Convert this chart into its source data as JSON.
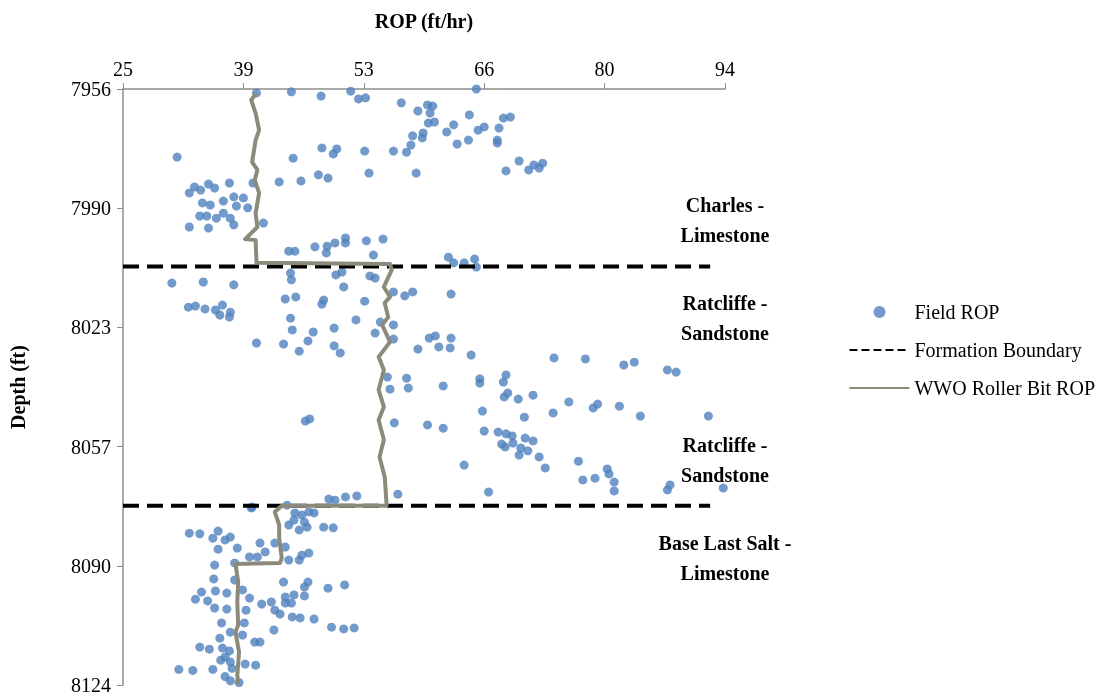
{
  "chart_data": {
    "type": "scatter",
    "xlabel": "ROP (ft/hr)",
    "ylabel": "Depth (ft)",
    "xlim": [
      25,
      94
    ],
    "xticks": [
      25,
      {
        "value": 38.8,
        "label": "39"
      },
      {
        "value": 52.6,
        "label": "53"
      },
      {
        "value": 66.4,
        "label": "66"
      },
      {
        "value": 80.2,
        "label": "80"
      },
      94
    ],
    "ylim": [
      8124,
      7956
    ],
    "yticks": [
      7956,
      {
        "value": 7989.6,
        "label": "7990"
      },
      {
        "value": 8023.2,
        "label": "8023"
      },
      {
        "value": 8056.8,
        "label": "8057"
      },
      {
        "value": 8090.4,
        "label": "8090"
      },
      8124
    ],
    "grid": false,
    "legend": "right",
    "annotations": [
      "Charles -\nLimestone",
      "Ratcliffe -\nSandstone",
      "Ratcliffe -\nSandstone",
      "Base Last Salt -\nLimestone"
    ],
    "series": [
      {
        "name": "Field ROP",
        "marker": "circle",
        "color": "#4f81bd",
        "x": [
          40.3,
          44.3,
          47.7,
          51.1,
          52.0,
          52.8,
          56.9,
          58.8,
          59.9,
          60.5,
          60.2,
          64.7,
          60.0,
          60.7,
          62.9,
          62.1,
          65.7,
          66.4,
          59.4,
          59.3,
          58.2,
          58.0,
          63.3,
          64.6,
          57.5,
          56.0,
          52.7,
          49.5,
          49.1,
          47.8,
          44.5,
          31.2,
          58.6,
          53.2,
          48.5,
          47.4,
          45.4,
          42.9,
          39.9,
          37.2,
          33.2,
          34.8,
          35.5,
          32.6,
          33.9,
          34.1,
          35.0,
          36.5,
          37.7,
          38.8,
          39.3,
          38.0,
          33.8,
          34.6,
          35.7,
          36.5,
          37.3,
          37.7,
          32.6,
          34.8,
          41.1,
          44.0,
          44.7,
          47.0,
          48.4,
          48.3,
          49.3,
          50.5,
          50.5,
          52.9,
          54.8,
          53.7,
          62.3,
          62.9,
          64.1,
          65.3,
          65.5,
          68.1,
          68.6,
          69.4,
          67.9,
          67.9,
          70.4,
          68.9,
          71.5,
          72.1,
          73.1,
          72.7,
          65.5,
          30.6,
          34.2,
          37.7,
          32.5,
          33.3,
          34.4,
          35.6,
          36.4,
          36.1,
          37.2,
          37.3,
          44.2,
          44.3,
          43.6,
          44.8,
          48.0,
          47.8,
          49.4,
          50.1,
          50.3,
          53.3,
          53.9,
          52.7,
          56.0,
          57.3,
          58.2,
          62.6,
          44.2,
          44.4,
          46.8,
          49.2,
          51.7,
          53.9,
          54.5,
          56.0,
          56.0,
          40.3,
          43.4,
          45.2,
          46.2,
          49.2,
          49.9,
          58.8,
          60.1,
          60.8,
          61.2,
          62.6,
          62.5,
          64.9,
          55.3,
          57.5,
          57.7,
          55.6,
          61.7,
          65.9,
          65.9,
          45.9,
          46.4,
          56.1,
          59.9,
          61.7,
          66.2,
          66.4,
          64.1,
          66.9,
          56.5,
          48.6,
          49.3,
          50.5,
          51.8,
          39.8,
          43.8,
          74.4,
          78.0,
          82.4,
          83.6,
          87.4,
          88.4,
          68.6,
          68.9,
          68.7,
          69.1,
          70.3,
          72.0,
          76.1,
          78.9,
          79.4,
          81.9,
          84.3,
          92.1,
          71.0,
          74.3,
          68.0,
          68.9,
          69.6,
          71.1,
          72.0,
          68.4,
          68.8,
          69.7,
          70.6,
          71.4,
          70.4,
          72.7,
          73.4,
          77.2,
          80.5,
          80.7,
          77.7,
          79.1,
          81.3,
          81.3,
          87.4,
          87.7,
          93.8,
          39.7,
          44.7,
          45.5,
          46.3,
          46.9,
          44.6,
          45.8,
          46.1,
          44.0,
          45.2,
          48.0,
          49.1,
          32.6,
          33.8,
          35.9,
          35.3,
          36.7,
          37.3,
          38.1,
          35.9,
          40.7,
          41.3,
          42.4,
          43.6,
          39.5,
          40.4,
          44.0,
          45.2,
          45.5,
          46.3,
          35.5,
          37.8,
          35.4,
          37.8,
          43.4,
          46.2,
          45.8,
          48.5,
          50.4,
          34.0,
          35.6,
          36.9,
          33.3,
          34.7,
          38.7,
          39.5,
          43.6,
          44.6,
          45.8,
          43.6,
          44.3,
          35.5,
          36.9,
          39.1,
          40.9,
          42.0,
          42.4,
          43.0,
          44.4,
          45.3,
          46.9,
          36.3,
          38.9,
          48.9,
          50.3,
          51.5,
          42.3,
          37.3,
          38.7,
          36.1,
          40.1,
          40.7,
          33.8,
          34.9,
          36.4,
          37.2,
          36.7,
          37.3,
          36.2,
          39.0,
          40.2,
          31.4,
          33.0,
          35.3,
          37.5,
          36.7,
          37.3,
          38.3
        ],
        "values": [
          7957.1,
          7956.8,
          7958.0,
          7956.6,
          7958.8,
          7958.5,
          7959.9,
          7962.2,
          7960.5,
          7960.8,
          7962.8,
          7963.3,
          7965.6,
          7965.3,
          7966.1,
          7968.1,
          7967.6,
          7966.7,
          7968.4,
          7969.8,
          7969.2,
          7971.8,
          7971.5,
          7970.4,
          7973.8,
          7973.5,
          7973.5,
          7972.9,
          7974.3,
          7972.6,
          7975.5,
          7975.2,
          7979.7,
          7979.7,
          7981.1,
          7980.2,
          7981.9,
          7982.2,
          7982.5,
          7982.5,
          7983.6,
          7982.8,
          7983.9,
          7985.3,
          7984.5,
          7988.1,
          7988.7,
          7987.6,
          7986.4,
          7986.7,
          7989.5,
          7989.0,
          7991.8,
          7991.8,
          7992.4,
          7991.0,
          7992.4,
          7994.3,
          7994.9,
          7995.2,
          7993.8,
          8001.7,
          8001.7,
          8000.5,
          8000.3,
          8002.2,
          7999.4,
          7998.0,
          7999.4,
          7998.8,
          7998.3,
          8002.8,
          8003.4,
          8005.0,
          8005.0,
          8003.9,
          7956.0,
          7967.0,
          7964.2,
          7963.9,
          7970.4,
          7971.2,
          7976.3,
          7979.1,
          7978.8,
          7977.4,
          7976.9,
          7978.3,
          8006.2,
          8010.7,
          8010.4,
          8011.2,
          8017.5,
          8017.2,
          8018.0,
          8018.3,
          8016.9,
          8019.7,
          8020.3,
          8018.9,
          8007.9,
          8009.8,
          8015.2,
          8014.6,
          8015.5,
          8016.6,
          8008.4,
          8007.6,
          8011.8,
          8008.7,
          8009.3,
          8015.8,
          8013.2,
          8014.3,
          8013.2,
          8013.8,
          8020.6,
          8023.9,
          8024.5,
          8023.4,
          8021.1,
          8024.8,
          8021.7,
          8022.5,
          8026.5,
          8027.6,
          8027.9,
          8029.9,
          8027.0,
          8028.4,
          8030.4,
          8029.3,
          8026.2,
          8025.6,
          8028.7,
          8026.2,
          8029.0,
          8031.0,
          8037.2,
          8037.5,
          8040.3,
          8040.6,
          8039.7,
          8037.7,
          8038.9,
          8049.6,
          8049.0,
          8050.1,
          8050.7,
          8051.6,
          8046.8,
          8052.4,
          8062.0,
          8069.6,
          8070.2,
          8071.6,
          8071.9,
          8071.0,
          8070.7,
          8073.8,
          8073.3,
          8031.8,
          8032.1,
          8033.8,
          8033.0,
          8035.2,
          8035.8,
          8038.6,
          8036.6,
          8042.8,
          8041.7,
          8043.4,
          8042.3,
          8044.2,
          8045.9,
          8044.8,
          8045.4,
          8048.2,
          8048.2,
          8048.5,
          8047.3,
          8052.7,
          8053.2,
          8053.8,
          8054.4,
          8055.2,
          8056.1,
          8056.9,
          8055.8,
          8057.2,
          8058.0,
          8059.2,
          8059.7,
          8062.8,
          8060.9,
          8063.1,
          8064.5,
          8066.2,
          8065.7,
          8066.8,
          8069.3,
          8069.0,
          8067.6,
          8068.5,
          8074.1,
          8075.5,
          8076.1,
          8075.2,
          8075.5,
          8077.5,
          8078.1,
          8079.5,
          8078.9,
          8080.3,
          8079.5,
          8079.7,
          8081.2,
          8081.4,
          8080.6,
          8082.6,
          8083.1,
          8082.3,
          8085.4,
          8085.7,
          8084.0,
          8086.5,
          8084.0,
          8085.1,
          8087.9,
          8087.9,
          8088.8,
          8088.8,
          8087.4,
          8086.8,
          8090.2,
          8089.6,
          8094.1,
          8094.4,
          8095.0,
          8095.0,
          8096.4,
          8096.7,
          8095.8,
          8097.8,
          8097.5,
          8098.1,
          8099.8,
          8100.3,
          8097.2,
          8099.5,
          8099.2,
          8098.6,
          8098.9,
          8100.9,
          8100.9,
          8102.3,
          8102.6,
          8102.9,
          8101.2,
          8100.6,
          8102.9,
          8104.0,
          8104.8,
          8105.1,
          8105.4,
          8106.5,
          8106.5,
          8107.7,
          8108.2,
          8107.9,
          8108.5,
          8109.1,
          8109.9,
          8110.8,
          8111.9,
          8111.9,
          8113.3,
          8113.9,
          8113.6,
          8114.4,
          8116.1,
          8117.5,
          8117.0,
          8118.1,
          8118.4,
          8119.6,
          8119.9,
          8119.6,
          8119.3,
          8121.6,
          8122.8,
          8123.3
        ]
      },
      {
        "name": "Formation Boundary",
        "type": "line",
        "line_style": "dashed",
        "color": "#000000",
        "x": [
          25,
          92.3
        ],
        "values": [
          8006,
          8006
        ]
      },
      {
        "type": "line",
        "line_style": "dashed",
        "color": "#000000",
        "x": [
          25,
          92.3
        ],
        "values": [
          8073.5,
          8073.5
        ]
      },
      {
        "name": "WWO Roller Bit ROP",
        "type": "line",
        "line_style": "solid",
        "color": "#8c8a7a",
        "x": [
          40.3,
          39.7,
          40.2,
          40.6,
          40.2,
          39.8,
          40.4,
          40.1,
          40.6,
          40.2,
          40.4,
          39.0,
          40.2,
          40.3,
          55.6,
          55.8,
          54.9,
          55.6,
          55.0,
          55.4,
          54.7,
          55.6,
          54.3,
          54.9,
          54.3,
          54.9,
          54.3,
          54.9,
          54.4,
          55.0,
          55.2,
          55.2,
          43.2,
          42.4,
          42.9,
          42.9,
          43.2,
          43.0,
          37.9,
          38.2,
          38.1,
          38.2,
          37.9,
          38.3,
          38.1,
          38.2
        ],
        "values": [
          7957.1,
          7959.1,
          7962.8,
          7967.6,
          7970.4,
          7976.6,
          7978.8,
          7981.7,
          7985.3,
          7991.0,
          7994.9,
          7998.3,
          7998.6,
          8005.0,
          8005.3,
          8007.0,
          8011.8,
          8014.6,
          8016.3,
          8020.3,
          8022.5,
          8027.3,
          8031.5,
          8035.2,
          8040.8,
          8045.6,
          8049.3,
          8054.9,
          8059.7,
          8065.4,
          8072.7,
          8073.5,
          8073.5,
          8075.2,
          8078.9,
          8082.6,
          8088.2,
          8089.6,
          8089.9,
          8095.0,
          8100.6,
          8107.1,
          8109.1,
          8114.7,
          8121.2,
          8123.7
        ]
      }
    ]
  }
}
